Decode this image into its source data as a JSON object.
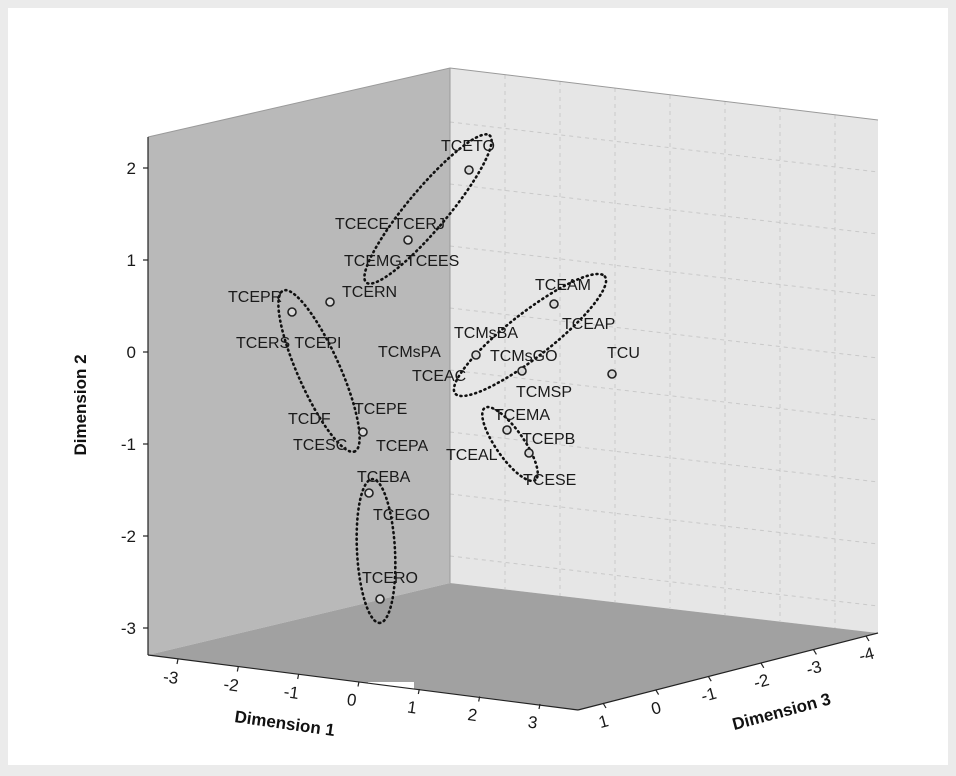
{
  "chart_data": {
    "type": "scatter",
    "projection": "3d",
    "xlabel": "Dimension 1",
    "ylabel": "Dimension 2",
    "zlabel": "Dimension 3",
    "x_ticks": [
      "-3",
      "-2",
      "-1",
      "0",
      "1",
      "2",
      "3"
    ],
    "y_ticks": [
      "2",
      "1",
      "0",
      "-1",
      "-2",
      "-3"
    ],
    "z_ticks": [
      "1",
      "0",
      "-1",
      "-2",
      "-3",
      "-4"
    ],
    "ylim": [
      -3,
      2
    ],
    "points": [
      {
        "y": 1.95,
        "labels": [
          "TCETO"
        ]
      },
      {
        "y": 1.2,
        "labels": [
          "TCECE TCERJ",
          "TCEMG TCEES"
        ]
      },
      {
        "y": 0.5,
        "labels": [
          "TCERN"
        ]
      },
      {
        "y": 0.42,
        "labels": [
          "TCEPR",
          "TCERS TCEPI"
        ]
      },
      {
        "y": 0.5,
        "labels": [
          "TCEAM",
          "TCEAP"
        ]
      },
      {
        "y": -0.03,
        "labels": [
          "TCMsBA",
          "TCMsPA"
        ]
      },
      {
        "y": -0.22,
        "labels": [
          "TCMsGO",
          "TCEAC",
          "TCMSP"
        ]
      },
      {
        "y": -0.25,
        "labels": [
          "TCU"
        ]
      },
      {
        "y": -0.88,
        "labels": [
          "TCEPE",
          "TCDF",
          "TCESC",
          "TCEPA"
        ]
      },
      {
        "y": -0.85,
        "labels": [
          "TCEMA",
          "TCEAL"
        ]
      },
      {
        "y": -1.1,
        "labels": [
          "TCEPB",
          "TCESE"
        ]
      },
      {
        "y": -1.55,
        "labels": [
          "TCEBA",
          "TCEGO"
        ]
      },
      {
        "y": -2.7,
        "labels": [
          "TCERO"
        ]
      }
    ],
    "clusters": [
      [
        "TCETO",
        "TCECE",
        "TCERJ",
        "TCEMG",
        "TCEES"
      ],
      [
        "TCEPR",
        "TCERS",
        "TCEPI",
        "TCEPE",
        "TCDF",
        "TCESC",
        "TCEPA"
      ],
      [
        "TCEAM",
        "TCEAP",
        "TCMsBA",
        "TCMsGO",
        "TCEAC"
      ],
      [
        "TCEMA",
        "TCEPB",
        "TCEAL",
        "TCESE"
      ],
      [
        "TCEBA",
        "TCEGO",
        "TCERO"
      ]
    ]
  }
}
